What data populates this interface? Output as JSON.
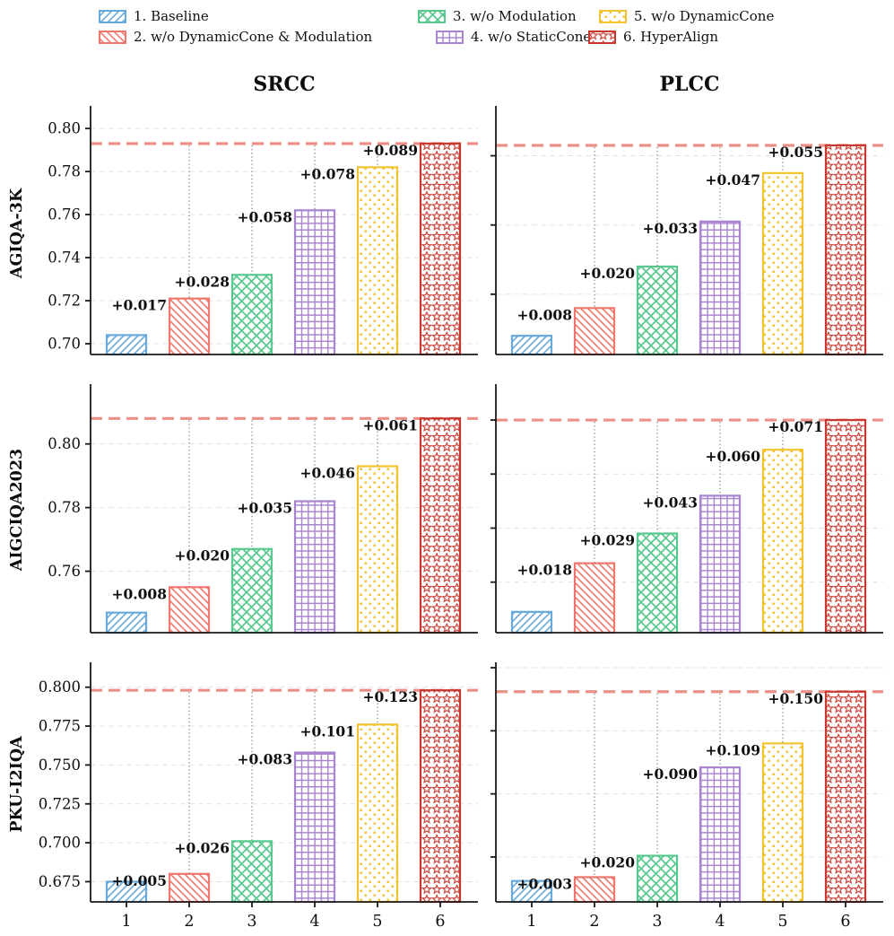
{
  "chart_data": {
    "type": "bar",
    "columns": [
      "SRCC",
      "PLCC"
    ],
    "rows": [
      "AGIQA-3K",
      "AIGCIQA2023",
      "PKU-I2IQA"
    ],
    "x_tick_labels": [
      "1",
      "2",
      "3",
      "4",
      "5",
      "6"
    ],
    "legend": [
      {
        "key": "baseline",
        "label": "1. Baseline",
        "color": "#67A9DB",
        "hatch": "diagonal-up"
      },
      {
        "key": "wo-dynamiccone-modulation",
        "label": "2. w/o DynamicCone & Modulation",
        "color": "#F2766B",
        "hatch": "diagonal-down"
      },
      {
        "key": "wo-modulation",
        "label": "3. w/o Modulation",
        "color": "#58C88F",
        "hatch": "cross"
      },
      {
        "key": "wo-staticcone",
        "label": "4. w/o StaticCone",
        "color": "#A884D1",
        "hatch": "grid"
      },
      {
        "key": "wo-dynamiccone",
        "label": "5. w/o DynamicCone",
        "color": "#F3C32F",
        "hatch": "dots"
      },
      {
        "key": "hyperalign",
        "label": "6. HyperAlign",
        "color": "#C8382E",
        "hatch": "stars"
      }
    ],
    "reference_line_color": "#EB8F87",
    "grid_color": "#E3E3E3",
    "connector_color": "#909090",
    "subplots": [
      {
        "row": "AGIQA-3K",
        "metric": "SRCC",
        "values": [
          0.704,
          0.721,
          0.732,
          0.762,
          0.782,
          0.793
        ],
        "annotations": [
          "+0.017",
          "+0.028",
          "+0.058",
          "+0.078",
          "+0.089"
        ],
        "reference_value": 0.793,
        "ylim": [
          0.695,
          0.8105
        ],
        "yticks": [
          0.7,
          0.72,
          0.74,
          0.76,
          0.78,
          0.8
        ],
        "ytick_labels": [
          "0.70",
          "0.72",
          "0.74",
          "0.76",
          "0.78",
          "0.80"
        ],
        "show_xticks": false
      },
      {
        "row": "AGIQA-3K",
        "metric": "PLCC",
        "values": [
          0.708,
          0.716,
          0.728,
          0.741,
          0.755,
          0.763
        ],
        "annotations": [
          "+0.008",
          "+0.020",
          "+0.033",
          "+0.047",
          "+0.055"
        ],
        "reference_value": 0.763,
        "ylim": [
          0.7026,
          0.7744
        ],
        "yticks": [
          0.72,
          0.74,
          0.76
        ],
        "ytick_labels": [],
        "show_xticks": false
      },
      {
        "row": "AIGCIQA2023",
        "metric": "SRCC",
        "values": [
          0.747,
          0.755,
          0.767,
          0.782,
          0.793,
          0.808
        ],
        "annotations": [
          "+0.008",
          "+0.020",
          "+0.035",
          "+0.046",
          "+0.061"
        ],
        "reference_value": 0.808,
        "ylim": [
          0.7407,
          0.8188
        ],
        "yticks": [
          0.76,
          0.78,
          0.8
        ],
        "ytick_labels": [
          "0.76",
          "0.78",
          "0.80"
        ],
        "show_xticks": false
      },
      {
        "row": "AIGCIQA2023",
        "metric": "PLCC",
        "values": [
          0.729,
          0.747,
          0.758,
          0.772,
          0.789,
          0.8
        ],
        "annotations": [
          "+0.018",
          "+0.029",
          "+0.043",
          "+0.060",
          "+0.071"
        ],
        "reference_value": 0.8,
        "ylim": [
          0.7213,
          0.8133
        ],
        "yticks": [
          0.74,
          0.76,
          0.78,
          0.8
        ],
        "ytick_labels": [],
        "show_xticks": false
      },
      {
        "row": "PKU-I2IQA",
        "metric": "SRCC",
        "values": [
          0.675,
          0.68,
          0.701,
          0.758,
          0.776,
          0.798
        ],
        "annotations": [
          "+0.005",
          "+0.026",
          "+0.083",
          "+0.101",
          "+0.123"
        ],
        "reference_value": 0.798,
        "ylim": [
          0.662,
          0.816
        ],
        "yticks": [
          0.675,
          0.7,
          0.725,
          0.75,
          0.775,
          0.8
        ],
        "ytick_labels": [
          "0.675",
          "0.700",
          "0.725",
          "0.750",
          "0.775",
          "0.800"
        ],
        "show_xticks": true
      },
      {
        "row": "PKU-I2IQA",
        "metric": "PLCC",
        "values": [
          0.631,
          0.634,
          0.651,
          0.721,
          0.74,
          0.781
        ],
        "annotations": [
          "+0.003",
          "+0.020",
          "+0.090",
          "+0.109",
          "+0.150"
        ],
        "reference_value": 0.781,
        "ylim": [
          0.6144,
          0.8043
        ],
        "yticks": [
          0.65,
          0.7,
          0.75,
          0.8
        ],
        "ytick_labels": [],
        "show_xticks": true
      }
    ]
  }
}
